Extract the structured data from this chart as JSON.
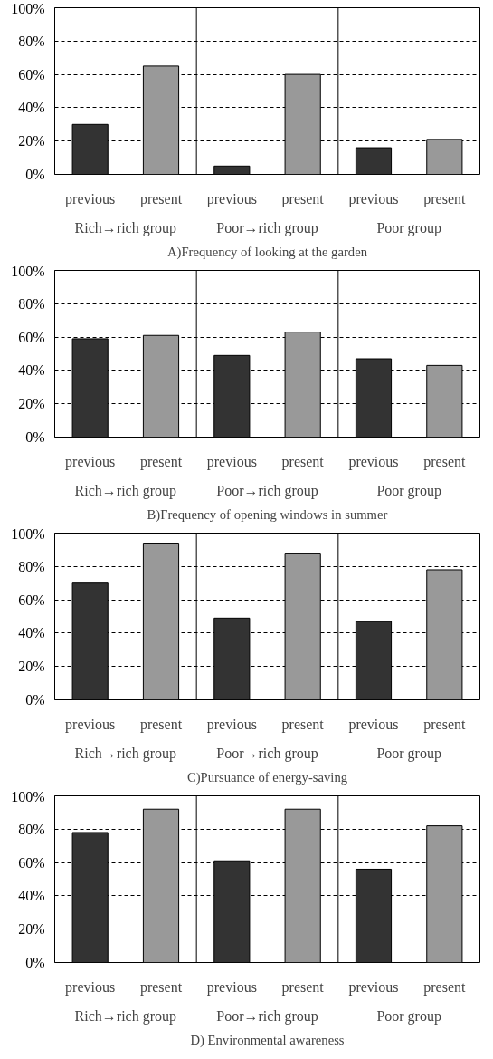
{
  "chart_data": [
    {
      "type": "bar",
      "title": "A)Frequency of looking at the garden",
      "categories": [
        "previous",
        "present",
        "previous",
        "present",
        "previous",
        "present"
      ],
      "values": [
        30,
        65,
        5,
        60,
        16,
        21
      ],
      "colors": [
        "#333333",
        "#999999",
        "#333333",
        "#999999",
        "#333333",
        "#999999"
      ],
      "annotations": [
        "Rich→rich group",
        "Poor→rich group",
        "Poor group"
      ],
      "ylim": [
        0,
        100
      ],
      "yticks": [
        {
          "value": 0,
          "label": "0%"
        },
        {
          "value": 20,
          "label": "20%"
        },
        {
          "value": 40,
          "label": "40%"
        },
        {
          "value": 60,
          "label": "60%"
        },
        {
          "value": 80,
          "label": "80%"
        },
        {
          "value": 100,
          "label": "100%"
        }
      ],
      "grid": "y"
    },
    {
      "type": "bar",
      "title": "B)Frequency of opening windows in summer",
      "categories": [
        "previous",
        "present",
        "previous",
        "present",
        "previous",
        "present"
      ],
      "values": [
        59,
        61,
        49,
        63,
        47,
        43
      ],
      "colors": [
        "#333333",
        "#999999",
        "#333333",
        "#999999",
        "#333333",
        "#999999"
      ],
      "annotations": [
        "Rich→rich group",
        "Poor→rich group",
        "Poor group"
      ],
      "ylim": [
        0,
        100
      ],
      "yticks": [
        {
          "value": 0,
          "label": "0%"
        },
        {
          "value": 20,
          "label": "20%"
        },
        {
          "value": 40,
          "label": "40%"
        },
        {
          "value": 60,
          "label": "60%"
        },
        {
          "value": 80,
          "label": "80%"
        },
        {
          "value": 100,
          "label": "100%"
        }
      ],
      "grid": "y"
    },
    {
      "type": "bar",
      "title": "C)Pursuance of energy-saving",
      "categories": [
        "previous",
        "present",
        "previous",
        "present",
        "previous",
        "present"
      ],
      "values": [
        70,
        94,
        49,
        88,
        47,
        78
      ],
      "colors": [
        "#333333",
        "#999999",
        "#333333",
        "#999999",
        "#333333",
        "#999999"
      ],
      "annotations": [
        "Rich→rich group",
        "Poor→rich group",
        "Poor group"
      ],
      "ylim": [
        0,
        100
      ],
      "yticks": [
        {
          "value": 0,
          "label": "0%"
        },
        {
          "value": 20,
          "label": "20%"
        },
        {
          "value": 40,
          "label": "40%"
        },
        {
          "value": 60,
          "label": "60%"
        },
        {
          "value": 80,
          "label": "80%"
        },
        {
          "value": 100,
          "label": "100%"
        }
      ],
      "grid": "y"
    },
    {
      "type": "bar",
      "title": "D) Environmental awareness",
      "categories": [
        "previous",
        "present",
        "previous",
        "present",
        "previous",
        "present"
      ],
      "values": [
        78,
        92,
        61,
        92,
        56,
        82
      ],
      "colors": [
        "#333333",
        "#999999",
        "#333333",
        "#999999",
        "#333333",
        "#999999"
      ],
      "annotations": [
        "Rich→rich group",
        "Poor→rich group",
        "Poor group"
      ],
      "ylim": [
        0,
        100
      ],
      "yticks": [
        {
          "value": 0,
          "label": "0%"
        },
        {
          "value": 20,
          "label": "20%"
        },
        {
          "value": 40,
          "label": "40%"
        },
        {
          "value": 60,
          "label": "60%"
        },
        {
          "value": 80,
          "label": "80%"
        },
        {
          "value": 100,
          "label": "100%"
        }
      ],
      "grid": "y"
    }
  ]
}
